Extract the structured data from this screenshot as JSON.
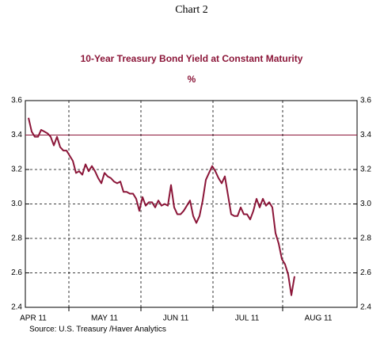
{
  "chart_data": {
    "type": "line",
    "header": "Chart 2",
    "title": "10-Year Treasury Bond Yield at Constant Maturity",
    "subtitle": "%",
    "source": "Source:  U.S. Treasury /Haver Analytics",
    "month_labels": [
      "APR 11",
      "MAY 11",
      "JUN 11",
      "JUL 11",
      "AUG 11"
    ],
    "x": [
      0,
      1,
      2,
      3,
      4,
      5,
      6,
      7,
      8,
      9,
      10,
      11,
      12,
      13,
      14,
      15,
      16,
      17,
      18,
      19,
      20,
      21,
      22,
      23,
      24,
      25,
      26,
      27,
      28,
      29,
      30,
      31,
      32,
      33,
      34,
      35,
      36,
      37,
      38,
      39,
      40,
      41,
      42,
      43,
      44,
      45,
      46,
      47,
      48,
      49,
      50,
      51,
      52,
      53,
      54,
      55,
      56,
      57,
      58,
      59,
      60,
      61,
      62,
      63,
      64,
      65,
      66,
      67,
      68,
      69,
      70,
      71,
      72,
      73,
      74,
      75,
      76,
      77,
      78,
      79,
      80,
      81,
      82,
      83,
      84
    ],
    "series": [
      {
        "name": "10-Year Treasury Bond Yield",
        "color": "#8b1538",
        "values": [
          3.5,
          3.42,
          3.39,
          3.39,
          3.43,
          3.42,
          3.41,
          3.39,
          3.34,
          3.39,
          3.33,
          3.31,
          3.31,
          3.28,
          3.25,
          3.18,
          3.19,
          3.17,
          3.23,
          3.19,
          3.22,
          3.19,
          3.15,
          3.12,
          3.18,
          3.16,
          3.15,
          3.13,
          3.12,
          3.13,
          3.07,
          3.07,
          3.06,
          3.06,
          3.03,
          2.96,
          3.04,
          2.99,
          3.01,
          3.01,
          2.98,
          3.02,
          2.99,
          3.0,
          2.99,
          3.11,
          2.98,
          2.94,
          2.94,
          2.96,
          2.99,
          3.02,
          2.93,
          2.89,
          2.93,
          3.02,
          3.14,
          3.18,
          3.22,
          3.19,
          3.15,
          3.12,
          3.16,
          3.05,
          2.94,
          2.93,
          2.93,
          2.98,
          2.94,
          2.94,
          2.91,
          2.96,
          3.03,
          2.98,
          3.03,
          2.99,
          3.01,
          2.98,
          2.83,
          2.77,
          2.68,
          2.65,
          2.59,
          2.47,
          2.58
        ]
      }
    ],
    "xlim": [
      -1,
      103.75
    ],
    "xticks": [
      12.75,
      35.5,
      58.25,
      80.25
    ],
    "ylim": [
      2.4,
      3.6
    ],
    "yticks": [
      {
        "value": 2.4,
        "label": "2.4"
      },
      {
        "value": 2.6,
        "label": "2.6"
      },
      {
        "value": 2.8,
        "label": "2.8"
      },
      {
        "value": 3.0,
        "label": "3.0"
      },
      {
        "value": 3.2,
        "label": "3.2"
      },
      {
        "value": 3.4,
        "label": "3.4"
      },
      {
        "value": 3.6,
        "label": "3.6"
      }
    ],
    "reference_line": {
      "value": 3.4,
      "color": "#8b1538"
    },
    "grid": true
  }
}
